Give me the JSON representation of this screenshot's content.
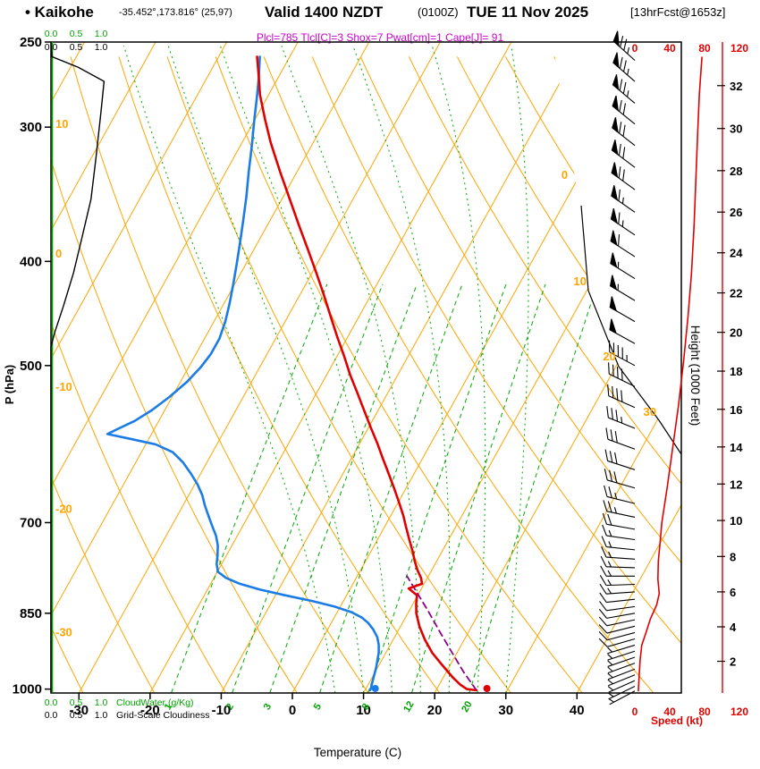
{
  "header": {
    "station_label": "• Kaikohe",
    "coords": "-35.452°,173.816° (25,97)",
    "valid_label": "Valid 1400 NZDT",
    "valid_utc": "(0100Z)",
    "valid_date": "TUE 11 Nov 2025",
    "fcst_info": "[13hrFcst@1653z]",
    "params": "Plcl=785 Tlcl[C]=3 Shox=7 Pwat[cm]=1 Cape[J]= 91",
    "indices": {
      "Plcl": 785,
      "Tlcl_C": 3,
      "Shox": 7,
      "Pwat_cm": 1,
      "Cape_J": 91
    }
  },
  "axes": {
    "pressure_label": "P (hPa)",
    "pressure_ticks": [
      250,
      300,
      400,
      500,
      700,
      850,
      1000
    ],
    "temp_label": "Temperature (C)",
    "temp_ticks": [
      -30,
      -20,
      -10,
      0,
      10,
      20,
      30,
      40
    ],
    "height_label": "Height (1000 Feet)",
    "height_ticks": [
      2,
      4,
      6,
      8,
      10,
      12,
      14,
      16,
      18,
      20,
      22,
      24,
      26,
      28,
      30,
      32
    ],
    "speed_label": "Speed (kt)",
    "speed_ticks": [
      0,
      40,
      80,
      120
    ],
    "isotherm_right_labels": [
      0,
      10,
      20,
      30
    ],
    "adiabat_left_labels": [
      {
        "v": 10,
        "f": 0.132
      },
      {
        "v": 0,
        "f": 0.331
      },
      {
        "v": -10,
        "f": 0.536
      },
      {
        "v": -20,
        "f": 0.723
      },
      {
        "v": -30,
        "f": 0.913
      }
    ],
    "cloud_scale": {
      "ticks": [
        "0.0",
        "0.5",
        "1.0"
      ],
      "cloudwater_label": "CloudWater (g/Kg)",
      "cloudiness_label": "Grid-Scale Cloudiness"
    }
  },
  "colors": {
    "grid_orange": "#FFA500",
    "grid_green": "#00A800",
    "red": "#E10000",
    "blue": "#1B7CE6",
    "purple": "#8B008B",
    "magenta": "#CC00CC",
    "black": "#000000",
    "green": "#00A300"
  },
  "chart_data": {
    "type": "line",
    "subtype": "skew-t log-p atmospheric sounding",
    "title": "Kaikohe sounding valid 1400 NZDT (0100Z) TUE 11 Nov 2025, 13hr forecast",
    "xlabel": "Temperature (C)",
    "ylabel": "P (hPa)",
    "pressure_range_hPa": [
      250,
      1008
    ],
    "temp_axis_range_C": [
      -35,
      45
    ],
    "pressure_log_scale": true,
    "grid": {
      "isotherms_C": {
        "min": -90,
        "max": 40,
        "step": 10
      },
      "dry_adiabats_C": {
        "min": -30,
        "max": 110,
        "step": 10
      },
      "moist_adiabats_C": [
        6,
        10,
        14,
        18,
        22,
        26,
        30
      ],
      "mixing_ratio_g_kg": [
        1,
        2,
        3,
        5,
        8,
        12,
        20
      ]
    },
    "series": [
      {
        "name": "temperature_C",
        "color": "#E10000",
        "points": [
          [
            1006,
            25.8
          ],
          [
            1000,
            24.2
          ],
          [
            990,
            22.9
          ],
          [
            975,
            21.3
          ],
          [
            950,
            18.9
          ],
          [
            925,
            16.5
          ],
          [
            900,
            14.5
          ],
          [
            875,
            12.7
          ],
          [
            850,
            11.2
          ],
          [
            832,
            10.4
          ],
          [
            818,
            9.9
          ],
          [
            806,
            8.2
          ],
          [
            798,
            9.7
          ],
          [
            788,
            9.1
          ],
          [
            775,
            8.0
          ],
          [
            760,
            6.9
          ],
          [
            745,
            5.9
          ],
          [
            725,
            4.4
          ],
          [
            705,
            2.9
          ],
          [
            690,
            1.8
          ],
          [
            670,
            0.1
          ],
          [
            650,
            -1.7
          ],
          [
            630,
            -3.6
          ],
          [
            610,
            -5.6
          ],
          [
            590,
            -7.6
          ],
          [
            570,
            -9.8
          ],
          [
            550,
            -12.0
          ],
          [
            530,
            -14.3
          ],
          [
            510,
            -16.7
          ],
          [
            490,
            -19.0
          ],
          [
            470,
            -21.5
          ],
          [
            450,
            -24.0
          ],
          [
            430,
            -26.6
          ],
          [
            410,
            -29.4
          ],
          [
            390,
            -32.4
          ],
          [
            370,
            -35.6
          ],
          [
            350,
            -38.9
          ],
          [
            330,
            -42.4
          ],
          [
            310,
            -46.0
          ],
          [
            295,
            -48.6
          ],
          [
            280,
            -51.2
          ],
          [
            268,
            -53.0
          ],
          [
            258,
            -54.6
          ]
        ]
      },
      {
        "name": "dewpoint_C",
        "color": "#1B7CE6",
        "points": [
          [
            1006,
            10.8
          ],
          [
            1000,
            10.7
          ],
          [
            985,
            10.4
          ],
          [
            970,
            10.1
          ],
          [
            955,
            9.8
          ],
          [
            940,
            9.4
          ],
          [
            925,
            9.0
          ],
          [
            910,
            8.4
          ],
          [
            895,
            7.6
          ],
          [
            880,
            6.4
          ],
          [
            868,
            5.2
          ],
          [
            858,
            3.9
          ],
          [
            848,
            2.0
          ],
          [
            838,
            -0.8
          ],
          [
            828,
            -4.4
          ],
          [
            818,
            -8.6
          ],
          [
            808,
            -12.6
          ],
          [
            798,
            -15.9
          ],
          [
            788,
            -18.3
          ],
          [
            778,
            -19.9
          ],
          [
            765,
            -20.7
          ],
          [
            750,
            -21.3
          ],
          [
            735,
            -22.0
          ],
          [
            720,
            -23.0
          ],
          [
            705,
            -24.3
          ],
          [
            690,
            -25.6
          ],
          [
            675,
            -26.9
          ],
          [
            660,
            -28.1
          ],
          [
            645,
            -29.6
          ],
          [
            630,
            -31.4
          ],
          [
            615,
            -33.4
          ],
          [
            602,
            -35.6
          ],
          [
            592,
            -38.6
          ],
          [
            585,
            -42.6
          ],
          [
            579,
            -46.2
          ],
          [
            573,
            -45.2
          ],
          [
            563,
            -43.4
          ],
          [
            550,
            -41.8
          ],
          [
            535,
            -40.4
          ],
          [
            518,
            -39.1
          ],
          [
            502,
            -38.3
          ],
          [
            488,
            -37.9
          ],
          [
            472,
            -37.9
          ],
          [
            455,
            -38.4
          ],
          [
            438,
            -39.2
          ],
          [
            420,
            -40.2
          ],
          [
            402,
            -41.3
          ],
          [
            384,
            -42.5
          ],
          [
            366,
            -43.8
          ],
          [
            348,
            -45.2
          ],
          [
            330,
            -46.8
          ],
          [
            312,
            -48.4
          ],
          [
            296,
            -50.0
          ],
          [
            282,
            -51.4
          ],
          [
            270,
            -52.7
          ],
          [
            258,
            -54.2
          ]
        ]
      },
      {
        "name": "parcel_path_C",
        "color": "#8B008B",
        "style": "dashed",
        "points": [
          [
            1006,
            25.8
          ],
          [
            965,
            22.5
          ],
          [
            925,
            19.3
          ],
          [
            885,
            16.0
          ],
          [
            845,
            12.6
          ],
          [
            805,
            8.9
          ],
          [
            785,
            7.0
          ]
        ]
      },
      {
        "name": "wind_speed_kt",
        "color": "#E10000",
        "points": [
          [
            258,
            77
          ],
          [
            280,
            74
          ],
          [
            305,
            72
          ],
          [
            335,
            70
          ],
          [
            370,
            68
          ],
          [
            410,
            65
          ],
          [
            450,
            61
          ],
          [
            495,
            56
          ],
          [
            545,
            50
          ],
          [
            600,
            43
          ],
          [
            650,
            37
          ],
          [
            700,
            31
          ],
          [
            730,
            29
          ],
          [
            760,
            27
          ],
          [
            790,
            26.5
          ],
          [
            815,
            28
          ],
          [
            835,
            25
          ],
          [
            860,
            18
          ],
          [
            885,
            13
          ],
          [
            910,
            8
          ],
          [
            940,
            6
          ],
          [
            970,
            5
          ],
          [
            1005,
            4
          ]
        ]
      },
      {
        "name": "cloudiness_fraction",
        "color": "#000000",
        "points": [
          [
            250,
            0
          ],
          [
            258,
            0.02
          ],
          [
            264,
            0.55
          ],
          [
            272,
            1.06
          ],
          [
            290,
            1.0
          ],
          [
            320,
            0.9
          ],
          [
            350,
            0.8
          ],
          [
            380,
            0.62
          ],
          [
            410,
            0.45
          ],
          [
            440,
            0.25
          ],
          [
            465,
            0.08
          ],
          [
            480,
            0
          ],
          [
            1008,
            0
          ]
        ]
      },
      {
        "name": "cloud_water_g_kg",
        "color": "#00A300",
        "points": [
          [
            250,
            0
          ],
          [
            1008,
            0
          ]
        ]
      }
    ],
    "surface_markers": {
      "temp_dot": [
        1005,
        27.0
      ],
      "dewpoint_dot": [
        1005,
        11.3
      ]
    },
    "wind_barbs": [
      [
        260,
        312,
        75
      ],
      [
        272,
        311,
        74
      ],
      [
        285,
        310,
        73
      ],
      [
        298,
        309,
        72
      ],
      [
        312,
        308,
        71
      ],
      [
        327,
        307,
        70
      ],
      [
        343,
        306,
        69
      ],
      [
        360,
        305,
        67
      ],
      [
        378,
        304,
        64
      ],
      [
        396,
        303,
        60
      ],
      [
        415,
        302,
        57
      ],
      [
        435,
        301,
        54
      ],
      [
        455,
        300,
        51
      ],
      [
        477,
        299,
        48
      ],
      [
        500,
        298,
        44
      ],
      [
        523,
        296,
        41
      ],
      [
        547,
        294,
        38
      ],
      [
        572,
        292,
        35
      ],
      [
        598,
        290,
        32
      ],
      [
        625,
        288,
        30
      ],
      [
        650,
        286,
        29
      ],
      [
        672,
        284,
        27
      ],
      [
        692,
        282,
        25
      ],
      [
        710,
        280,
        21
      ],
      [
        726,
        278,
        17
      ],
      [
        742,
        276,
        14
      ],
      [
        757,
        274,
        13
      ],
      [
        771,
        272,
        13
      ],
      [
        785,
        270,
        14
      ],
      [
        799,
        268,
        14
      ],
      [
        812,
        266,
        13
      ],
      [
        825,
        264,
        12
      ],
      [
        838,
        262,
        11
      ],
      [
        850,
        260,
        11
      ],
      [
        862,
        258,
        10
      ],
      [
        874,
        256,
        9
      ],
      [
        886,
        255,
        9
      ],
      [
        898,
        254,
        8
      ],
      [
        910,
        253,
        7
      ],
      [
        922,
        252,
        7
      ],
      [
        934,
        251,
        6
      ],
      [
        946,
        250,
        6
      ],
      [
        958,
        249,
        5
      ],
      [
        970,
        248,
        5
      ],
      [
        982,
        246,
        5
      ],
      [
        994,
        244,
        4
      ],
      [
        1004,
        242,
        4
      ]
    ]
  }
}
